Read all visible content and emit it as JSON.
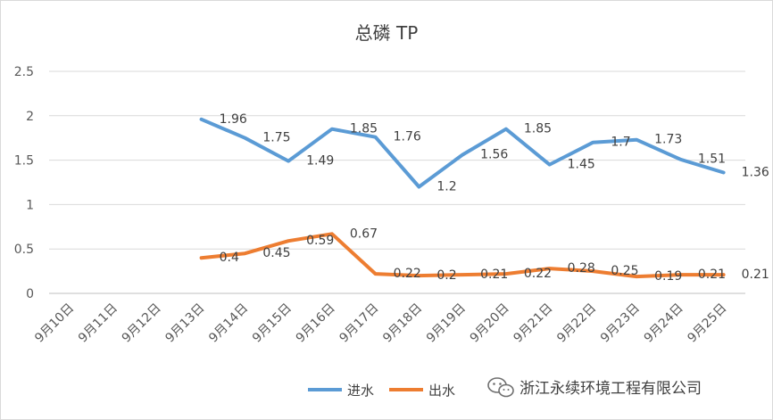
{
  "chart_data": {
    "type": "line",
    "title": "总磷 TP",
    "categories": [
      "9月10日",
      "9月11日",
      "9月12日",
      "9月13日",
      "9月14日",
      "9月15日",
      "9月16日",
      "9月17日",
      "9月18日",
      "9月19日",
      "9月20日",
      "9月21日",
      "9月22日",
      "9月23日",
      "9月24日",
      "9月25日"
    ],
    "ylim": [
      0,
      2.5
    ],
    "yticks": [
      "0",
      "0.5",
      "1",
      "1.5",
      "2",
      "2.5"
    ],
    "grid": true,
    "legend_position": "bottom",
    "series": [
      {
        "name": "进水",
        "color": "#5b9bd5",
        "values": [
          null,
          null,
          null,
          1.96,
          1.75,
          1.49,
          1.85,
          1.76,
          1.2,
          1.56,
          1.85,
          1.45,
          1.7,
          1.73,
          1.51,
          1.36
        ],
        "labels": [
          null,
          null,
          null,
          "1.96",
          "1.75",
          "1.49",
          "1.85",
          "1.76",
          "1.2",
          "1.56",
          "1.85",
          "1.45",
          "1.7",
          "1.73",
          "1.51",
          "1.36"
        ]
      },
      {
        "name": "出水",
        "color": "#ed7d31",
        "values": [
          null,
          null,
          null,
          0.4,
          0.45,
          0.59,
          0.67,
          0.22,
          0.2,
          0.21,
          0.22,
          0.28,
          0.25,
          0.19,
          0.21,
          0.21
        ],
        "labels": [
          null,
          null,
          null,
          "0.4",
          "0.45",
          "0.59",
          "0.67",
          "0.22",
          "0.2",
          "0.21",
          "0.22",
          "0.28",
          "0.25",
          "0.19",
          "0.21",
          "0.21"
        ]
      }
    ]
  },
  "watermark": {
    "text": "浙江永续环境工程有限公司",
    "icon": "wechat-icon"
  }
}
